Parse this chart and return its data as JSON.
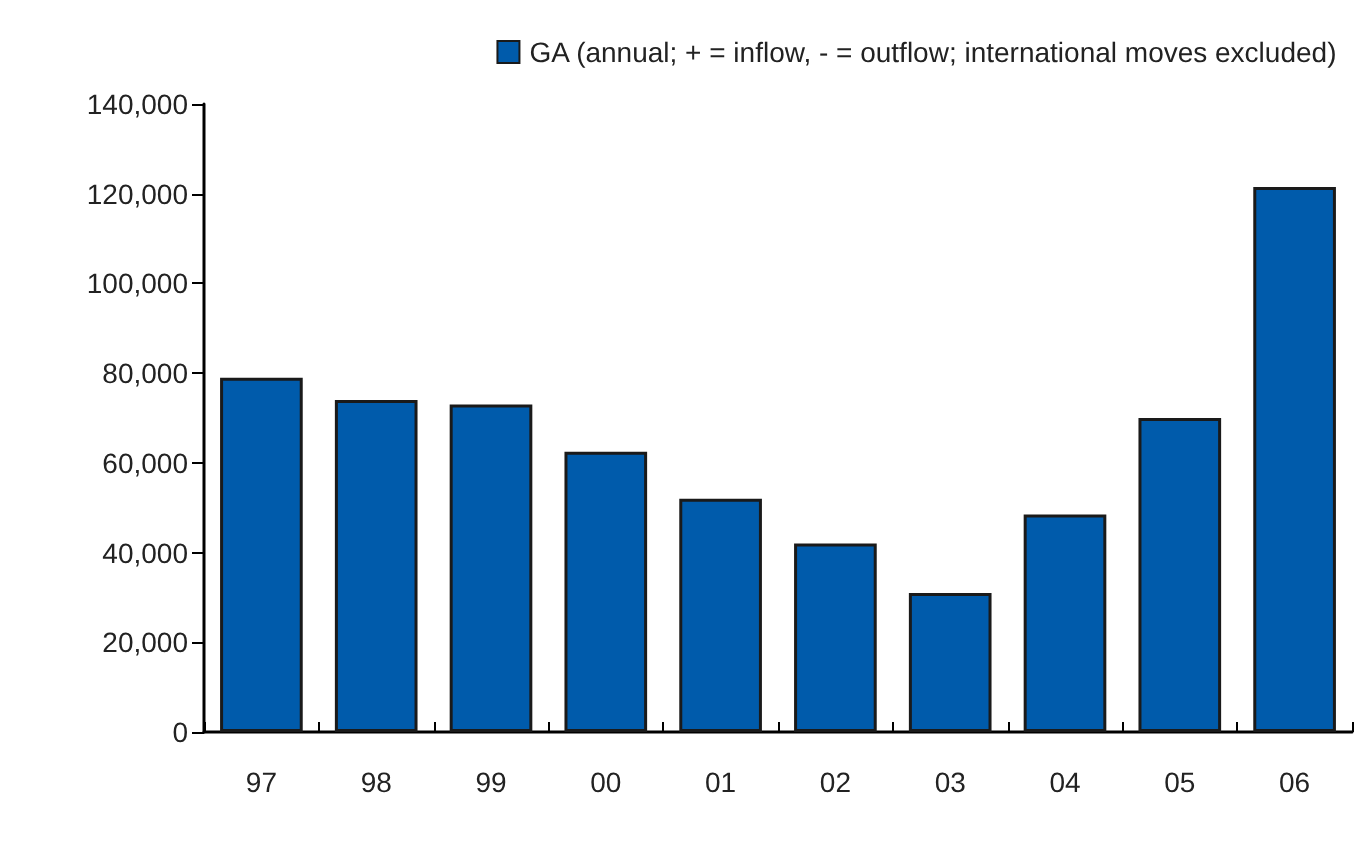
{
  "chart_data": {
    "type": "bar",
    "categories": [
      "97",
      "98",
      "99",
      "00",
      "01",
      "02",
      "03",
      "04",
      "05",
      "06"
    ],
    "series": [
      {
        "name": "GA (annual; + = inflow, - = outflow; international moves excluded)",
        "color": "#005bab",
        "values": [
          79000,
          74000,
          73000,
          62500,
          52000,
          42000,
          31000,
          48500,
          70000,
          121500
        ]
      }
    ],
    "ylim": [
      0,
      140000
    ],
    "yticks": [
      {
        "value": 0,
        "label": "0"
      },
      {
        "value": 20000,
        "label": "20,000"
      },
      {
        "value": 40000,
        "label": "40,000"
      },
      {
        "value": 60000,
        "label": "60,000"
      },
      {
        "value": 80000,
        "label": "80,000"
      },
      {
        "value": 100000,
        "label": "100,000"
      },
      {
        "value": 120000,
        "label": "120,000"
      },
      {
        "value": 140000,
        "label": "140,000"
      }
    ],
    "grid": false,
    "legend": "top right"
  }
}
